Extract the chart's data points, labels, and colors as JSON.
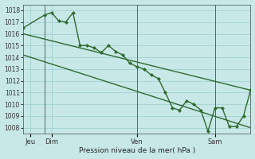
{
  "background_color": "#c8e8e8",
  "grid_color": "#99cccc",
  "line_color": "#2d6a2d",
  "xlabel": "Pression niveau de la mer( hPa )",
  "ylim": [
    1007.5,
    1018.5
  ],
  "yticks": [
    1008,
    1009,
    1010,
    1011,
    1012,
    1013,
    1014,
    1015,
    1016,
    1017,
    1018
  ],
  "ytick_fontsize": 5.5,
  "xtick_fontsize": 6.0,
  "xlabel_fontsize": 6.5,
  "n_points": 17,
  "xlim": [
    0,
    16
  ],
  "xtick_positions": [
    0.5,
    2.0,
    8.0,
    13.5
  ],
  "xtick_labels": [
    "Jeu",
    "Dim",
    "Ven",
    "Sam"
  ],
  "vline_positions": [
    1.5,
    8.0,
    13.5
  ],
  "vline_color": "#556666",
  "line_upper_smooth": {
    "x": [
      0,
      16
    ],
    "y": [
      1016.0,
      1011.2
    ]
  },
  "line_lower_smooth": {
    "x": [
      0,
      16
    ],
    "y": [
      1014.2,
      1008.0
    ]
  },
  "line_jagged": {
    "x": [
      0,
      1.5,
      2.0,
      2.5,
      3.0,
      3.5,
      4.0,
      4.5,
      5.0,
      5.5,
      6.0,
      6.5,
      7.0,
      7.5,
      8.0,
      8.5,
      9.0,
      9.5,
      10.0,
      10.5,
      11.0,
      11.5,
      12.0,
      12.5,
      13.0,
      13.5,
      14.0,
      14.5,
      15.0,
      15.5,
      16.0
    ],
    "y": [
      1016.5,
      1017.6,
      1017.8,
      1017.1,
      1017.0,
      1017.8,
      1015.0,
      1015.0,
      1014.8,
      1014.4,
      1015.0,
      1014.5,
      1014.2,
      1013.5,
      1013.2,
      1013.0,
      1012.5,
      1012.2,
      1011.0,
      1009.7,
      1009.5,
      1010.3,
      1010.0,
      1009.5,
      1007.7,
      1009.7,
      1009.7,
      1008.1,
      1008.1,
      1009.0,
      1011.2
    ]
  }
}
